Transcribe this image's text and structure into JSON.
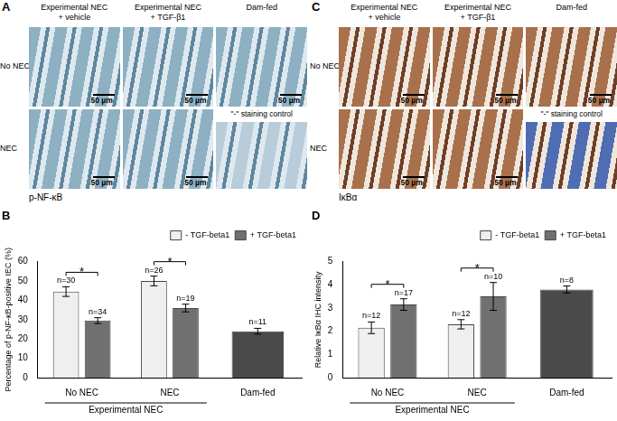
{
  "image_panels": [
    {
      "label": "A",
      "columns": [
        [
          "Experimental NEC",
          "+ vehicle"
        ],
        [
          "Experimental NEC",
          "+ TGF-β1"
        ],
        [
          "Dam-fed"
        ]
      ],
      "rows": [
        "No NEC",
        "NEC"
      ],
      "tiles": [
        [
          {
            "scale_bar": "50 µm"
          },
          {
            "scale_bar": "50 µm"
          },
          {
            "scale_bar": "50 µm"
          }
        ],
        [
          {
            "scale_bar": "50 µm"
          },
          {
            "scale_bar": "50 µm"
          },
          {
            "control_label": "\"-\" staining control"
          }
        ]
      ],
      "stain": "p-NF-κB"
    },
    {
      "label": "C",
      "columns": [
        [
          "Experimental NEC",
          "+ vehicle"
        ],
        [
          "Experimental NEC",
          "+ TGF-β1"
        ],
        [
          "Dam-fed"
        ]
      ],
      "rows": [
        "No NEC",
        "NEC"
      ],
      "tiles": [
        [
          {
            "scale_bar": "50 µm"
          },
          {
            "scale_bar": "50 µm"
          },
          {
            "scale_bar": "50 µm"
          }
        ],
        [
          {
            "scale_bar": "50 µm"
          },
          {
            "scale_bar": "50 µm"
          },
          {
            "control_label": "\"-\" staining control"
          }
        ]
      ],
      "stain": "IκBα"
    }
  ],
  "chart_data": [
    {
      "type": "bar",
      "title": "B",
      "categories": [
        "No NEC",
        "NEC",
        "Dam-fed"
      ],
      "y_label": "Percentage of p-NF-κB-positive IEC (%)",
      "ylim": [
        0,
        60
      ],
      "yticks": [
        0,
        10,
        20,
        30,
        40,
        50,
        60
      ],
      "grid": false,
      "legend": "upper right",
      "series": [
        {
          "name": "- TGF-beta1",
          "color": "#efefef",
          "values": [
            44.5,
            50,
            null
          ],
          "errors": [
            2.5,
            2.5,
            null
          ],
          "n_labels": [
            "n=30",
            "n=26",
            null
          ]
        },
        {
          "name": "+ TGF-beta1",
          "color": "#707070",
          "values": [
            29.5,
            36,
            null
          ],
          "errors": [
            1.5,
            2,
            null
          ],
          "n_labels": [
            "n=34",
            "n=19",
            null
          ]
        },
        {
          "color": "#4a4a4a",
          "values": [
            null,
            null,
            24
          ],
          "errors": [
            null,
            null,
            1.5
          ],
          "n_labels": [
            null,
            null,
            "n=11"
          ]
        }
      ],
      "significance": [
        {
          "category": "No NEC",
          "series": [
            0,
            1
          ],
          "label": "*"
        },
        {
          "category": "NEC",
          "series": [
            0,
            1
          ],
          "label": "*"
        }
      ],
      "group_label": {
        "text": "Experimental NEC",
        "categories": [
          "No NEC",
          "NEC"
        ]
      }
    },
    {
      "type": "bar",
      "title": "D",
      "categories": [
        "No NEC",
        "NEC",
        "Dam-fed"
      ],
      "y_label": "Relative IκBα IHC intensity",
      "ylim": [
        0,
        5
      ],
      "yticks": [
        0,
        1,
        2,
        3,
        4,
        5
      ],
      "grid": false,
      "legend": "upper right",
      "series": [
        {
          "name": "- TGF-beta1",
          "color": "#efefef",
          "values": [
            2.15,
            2.3,
            null
          ],
          "errors": [
            0.25,
            0.2,
            null
          ],
          "n_labels": [
            "n=12",
            "n=12",
            null
          ]
        },
        {
          "name": "+ TGF-beta1",
          "color": "#707070",
          "values": [
            3.15,
            3.5,
            null
          ],
          "errors": [
            0.25,
            0.6,
            null
          ],
          "n_labels": [
            "n=17",
            "n=10",
            null
          ]
        },
        {
          "color": "#4a4a4a",
          "values": [
            null,
            null,
            3.8
          ],
          "errors": [
            null,
            null,
            0.15
          ],
          "n_labels": [
            null,
            null,
            "n=8"
          ]
        }
      ],
      "significance": [
        {
          "category": "No NEC",
          "series": [
            0,
            1
          ],
          "label": "*"
        },
        {
          "category": "NEC",
          "series": [
            0,
            1
          ],
          "label": "*"
        }
      ],
      "group_label": {
        "text": "Experimental NEC",
        "categories": [
          "No NEC",
          "NEC"
        ]
      }
    }
  ]
}
